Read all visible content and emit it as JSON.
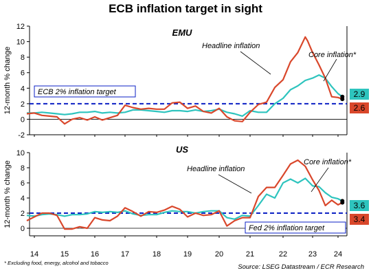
{
  "title": "ECB inflation target in sight",
  "footnote": "* Excluding food, energy, alcohol and tobacco",
  "source": "Source: LSEG Datastream / ECR Research",
  "colors": {
    "headline": "#d9472b",
    "core": "#2ec4be",
    "target_line": "#0a1fc4",
    "text": "#000000"
  },
  "chart_data": [
    {
      "type": "line",
      "title": "EMU",
      "ylabel": "12-month % change",
      "ylim": [
        -2,
        12
      ],
      "yticks": [
        -2,
        0,
        2,
        4,
        6,
        8,
        10,
        12
      ],
      "xlim": [
        2013.7,
        2024.5
      ],
      "xticks": [
        "14",
        "15",
        "16",
        "17",
        "18",
        "19",
        "20",
        "21",
        "22",
        "23",
        "24"
      ],
      "target": {
        "value": 2,
        "label": "ECB 2% inflation target"
      },
      "series": [
        {
          "name": "Headline inflation",
          "color": "#d9472b",
          "latest": "2.6",
          "x": [
            2013.75,
            2014.0,
            2014.25,
            2014.5,
            2014.75,
            2015.0,
            2015.25,
            2015.5,
            2015.75,
            2016.0,
            2016.25,
            2016.5,
            2016.75,
            2017.0,
            2017.25,
            2017.5,
            2017.75,
            2018.0,
            2018.25,
            2018.5,
            2018.75,
            2019.0,
            2019.25,
            2019.5,
            2019.75,
            2020.0,
            2020.25,
            2020.5,
            2020.75,
            2021.0,
            2021.25,
            2021.5,
            2021.75,
            2022.0,
            2022.25,
            2022.5,
            2022.75,
            2022.83,
            2023.0,
            2023.25,
            2023.5,
            2023.75,
            2024.0,
            2024.17
          ],
          "y": [
            0.7,
            0.8,
            0.5,
            0.4,
            0.3,
            -0.6,
            0.0,
            0.2,
            -0.1,
            0.3,
            -0.1,
            0.2,
            0.5,
            1.8,
            1.5,
            1.3,
            1.4,
            1.3,
            1.3,
            2.1,
            2.2,
            1.4,
            1.7,
            1.0,
            0.8,
            1.4,
            0.3,
            -0.2,
            -0.3,
            0.9,
            1.9,
            2.2,
            4.1,
            5.1,
            7.4,
            8.6,
            10.6,
            10.1,
            8.6,
            7.0,
            5.3,
            2.9,
            2.8,
            2.6
          ]
        },
        {
          "name": "Core inflation*",
          "color": "#2ec4be",
          "latest": "2.9",
          "x": [
            2013.75,
            2014.0,
            2014.25,
            2014.5,
            2014.75,
            2015.0,
            2015.25,
            2015.5,
            2015.75,
            2016.0,
            2016.25,
            2016.5,
            2016.75,
            2017.0,
            2017.25,
            2017.5,
            2017.75,
            2018.0,
            2018.25,
            2018.5,
            2018.75,
            2019.0,
            2019.25,
            2019.5,
            2019.75,
            2020.0,
            2020.25,
            2020.5,
            2020.75,
            2021.0,
            2021.25,
            2021.5,
            2021.75,
            2022.0,
            2022.25,
            2022.5,
            2022.75,
            2023.0,
            2023.25,
            2023.5,
            2023.75,
            2024.0,
            2024.17
          ],
          "y": [
            0.8,
            0.8,
            0.9,
            0.8,
            0.7,
            0.6,
            0.7,
            0.9,
            0.9,
            1.0,
            0.8,
            0.9,
            0.8,
            0.9,
            1.2,
            1.2,
            1.1,
            1.0,
            0.9,
            1.1,
            1.1,
            1.0,
            1.2,
            1.0,
            1.1,
            1.3,
            0.9,
            0.7,
            0.4,
            1.1,
            0.9,
            0.9,
            2.0,
            2.7,
            3.8,
            4.3,
            5.0,
            5.3,
            5.7,
            5.3,
            4.2,
            3.3,
            2.9
          ]
        }
      ],
      "annotations": [
        {
          "text": "Headline inflation",
          "series": "Headline inflation"
        },
        {
          "text": "Core inflation*",
          "series": "Core inflation*"
        }
      ]
    },
    {
      "type": "line",
      "title": "US",
      "ylabel": "12-month % change",
      "ylim": [
        -1,
        10
      ],
      "yticks": [
        0,
        2,
        4,
        6,
        8,
        10
      ],
      "xlim": [
        2013.7,
        2024.5
      ],
      "xticks": [
        "14",
        "15",
        "16",
        "17",
        "18",
        "19",
        "20",
        "21",
        "22",
        "23",
        "24"
      ],
      "target": {
        "value": 2,
        "label": "Fed 2% inflation target"
      },
      "series": [
        {
          "name": "Headline inflation",
          "color": "#d9472b",
          "latest": "3.4",
          "x": [
            2013.75,
            2014.0,
            2014.25,
            2014.5,
            2014.75,
            2015.0,
            2015.25,
            2015.5,
            2015.75,
            2016.0,
            2016.25,
            2016.5,
            2016.75,
            2017.0,
            2017.25,
            2017.5,
            2017.75,
            2018.0,
            2018.25,
            2018.5,
            2018.75,
            2019.0,
            2019.25,
            2019.5,
            2019.75,
            2020.0,
            2020.25,
            2020.5,
            2020.75,
            2021.0,
            2021.25,
            2021.5,
            2021.75,
            2022.0,
            2022.25,
            2022.5,
            2022.75,
            2023.0,
            2023.25,
            2023.5,
            2023.75,
            2024.0,
            2024.17
          ],
          "y": [
            1.0,
            1.5,
            2.0,
            2.0,
            1.7,
            -0.1,
            -0.1,
            0.2,
            0.0,
            1.4,
            1.1,
            1.0,
            1.6,
            2.7,
            2.2,
            1.6,
            2.2,
            2.1,
            2.4,
            2.9,
            2.5,
            1.5,
            2.0,
            1.7,
            1.8,
            2.3,
            0.3,
            1.0,
            1.4,
            1.4,
            4.2,
            5.4,
            5.4,
            7.0,
            8.5,
            9.0,
            8.2,
            6.4,
            5.0,
            3.0,
            3.7,
            3.1,
            3.4
          ]
        },
        {
          "name": "Core inflation*",
          "color": "#2ec4be",
          "latest": "3.6",
          "x": [
            2013.75,
            2014.0,
            2014.25,
            2014.5,
            2014.75,
            2015.0,
            2015.25,
            2015.5,
            2015.75,
            2016.0,
            2016.25,
            2016.5,
            2016.75,
            2017.0,
            2017.25,
            2017.5,
            2017.75,
            2018.0,
            2018.25,
            2018.5,
            2018.75,
            2019.0,
            2019.25,
            2019.5,
            2019.75,
            2020.0,
            2020.25,
            2020.5,
            2020.75,
            2021.0,
            2021.25,
            2021.5,
            2021.75,
            2022.0,
            2022.25,
            2022.5,
            2022.75,
            2023.0,
            2023.25,
            2023.5,
            2023.75,
            2024.0,
            2024.17
          ],
          "y": [
            1.7,
            1.6,
            1.8,
            1.9,
            1.8,
            1.6,
            1.8,
            1.8,
            1.9,
            2.2,
            2.1,
            2.2,
            2.1,
            2.3,
            1.9,
            1.7,
            1.8,
            1.8,
            2.1,
            2.3,
            2.2,
            2.2,
            2.0,
            2.2,
            2.3,
            2.3,
            1.4,
            1.2,
            1.7,
            1.6,
            3.0,
            4.5,
            4.0,
            6.0,
            6.5,
            6.0,
            6.6,
            5.6,
            5.5,
            4.7,
            4.1,
            3.9,
            3.6
          ]
        }
      ],
      "annotations": [
        {
          "text": "Headline inflation",
          "series": "Headline inflation"
        },
        {
          "text": "Core inflation*",
          "series": "Core inflation*"
        }
      ]
    }
  ]
}
